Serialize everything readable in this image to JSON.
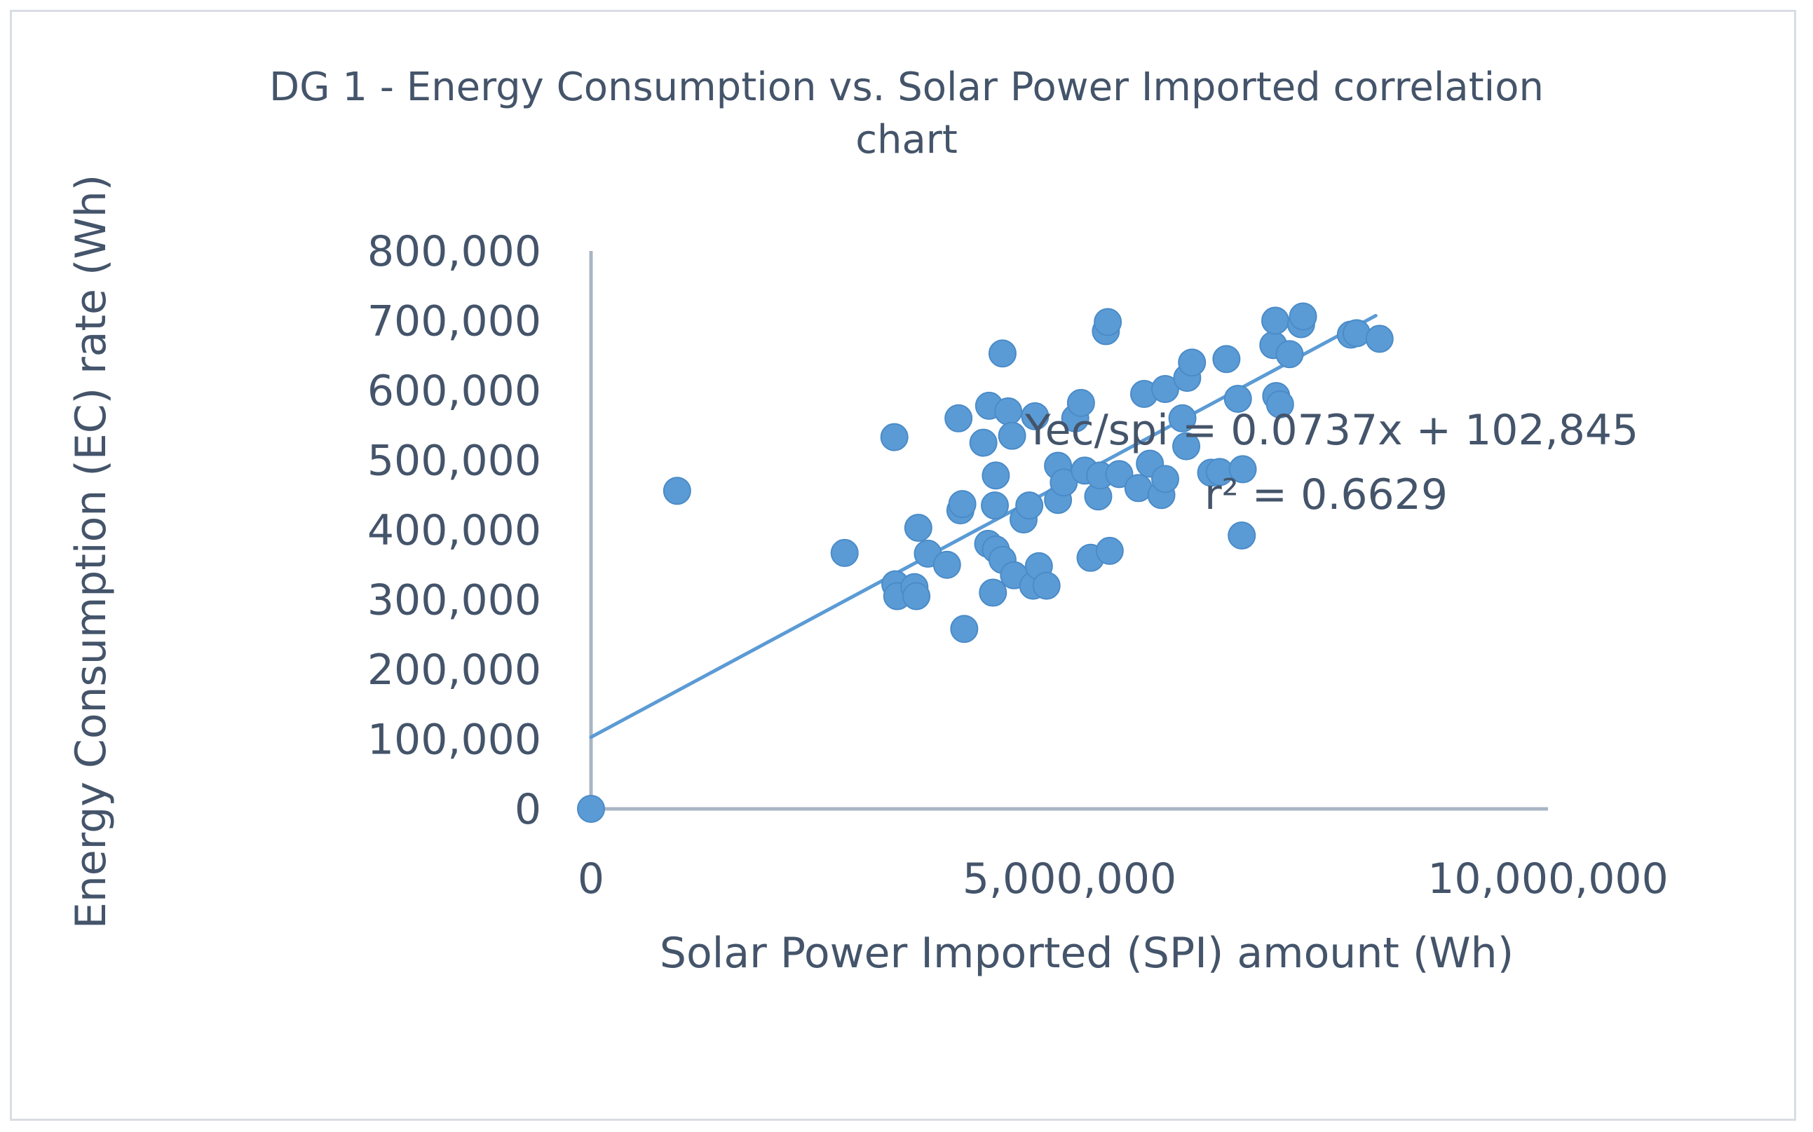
{
  "chart_data": {
    "type": "scatter",
    "title_lines": [
      "DG 1 - Energy Consumption vs. Solar Power Imported correlation",
      "chart"
    ],
    "xlabel": "Solar Power Imported (SPI) amount (Wh)",
    "ylabel": "Energy Consumption (EC) rate (Wh)",
    "xlim": [
      0,
      10000000
    ],
    "ylim": [
      0,
      800000
    ],
    "x_ticks": [
      0,
      5000000,
      10000000
    ],
    "x_tick_labels": [
      "0",
      "5,000,000",
      "10,000,000"
    ],
    "y_ticks": [
      0,
      100000,
      200000,
      300000,
      400000,
      500000,
      600000,
      700000,
      800000
    ],
    "y_tick_labels": [
      "0",
      "100,000",
      "200,000",
      "300,000",
      "400,000",
      "500,000",
      "600,000",
      "700,000",
      "800,000"
    ],
    "grid": false,
    "marker_color": "#5b9bd5",
    "trendline": {
      "slope": 0.0737,
      "intercept": 102845,
      "x_range": [
        0,
        8200000
      ],
      "equation_label": "Yec/spi = 0.0737x + 102,845",
      "r2_label": "r² = 0.6629",
      "color": "#5b9bd5"
    },
    "points": [
      [
        0,
        0
      ],
      [
        900000,
        456000
      ],
      [
        2650000,
        367000
      ],
      [
        3180000,
        322000
      ],
      [
        3200000,
        305000
      ],
      [
        3380000,
        318000
      ],
      [
        3400000,
        305000
      ],
      [
        3170000,
        533000
      ],
      [
        3420000,
        403000
      ],
      [
        3520000,
        366000
      ],
      [
        3720000,
        350000
      ],
      [
        3860000,
        428000
      ],
      [
        3880000,
        437000
      ],
      [
        3900000,
        258000
      ],
      [
        3840000,
        560000
      ],
      [
        4100000,
        525000
      ],
      [
        4160000,
        578000
      ],
      [
        4150000,
        380000
      ],
      [
        4230000,
        372000
      ],
      [
        4200000,
        310000
      ],
      [
        4220000,
        435000
      ],
      [
        4230000,
        478000
      ],
      [
        4300000,
        357000
      ],
      [
        4300000,
        653000
      ],
      [
        4360000,
        570000
      ],
      [
        4400000,
        535000
      ],
      [
        4420000,
        335000
      ],
      [
        4520000,
        415000
      ],
      [
        4580000,
        435000
      ],
      [
        4620000,
        320000
      ],
      [
        4640000,
        563000
      ],
      [
        4680000,
        348000
      ],
      [
        4760000,
        320000
      ],
      [
        4880000,
        443000
      ],
      [
        4880000,
        492000
      ],
      [
        4940000,
        468000
      ],
      [
        5060000,
        560000
      ],
      [
        5120000,
        582000
      ],
      [
        5160000,
        485000
      ],
      [
        5220000,
        360000
      ],
      [
        5300000,
        448000
      ],
      [
        5320000,
        478000
      ],
      [
        5380000,
        685000
      ],
      [
        5400000,
        698000
      ],
      [
        5420000,
        370000
      ],
      [
        5520000,
        480000
      ],
      [
        5720000,
        460000
      ],
      [
        5780000,
        595000
      ],
      [
        5840000,
        495000
      ],
      [
        5960000,
        450000
      ],
      [
        6000000,
        602000
      ],
      [
        6000000,
        473000
      ],
      [
        6180000,
        560000
      ],
      [
        6220000,
        520000
      ],
      [
        6230000,
        618000
      ],
      [
        6280000,
        640000
      ],
      [
        6480000,
        482000
      ],
      [
        6570000,
        483000
      ],
      [
        6640000,
        645000
      ],
      [
        6760000,
        588000
      ],
      [
        6800000,
        392000
      ],
      [
        6810000,
        487000
      ],
      [
        7130000,
        665000
      ],
      [
        7150000,
        700000
      ],
      [
        7160000,
        592000
      ],
      [
        7200000,
        580000
      ],
      [
        7300000,
        652000
      ],
      [
        7420000,
        695000
      ],
      [
        7440000,
        706000
      ],
      [
        7940000,
        680000
      ],
      [
        8000000,
        682000
      ],
      [
        8240000,
        674000
      ]
    ]
  }
}
